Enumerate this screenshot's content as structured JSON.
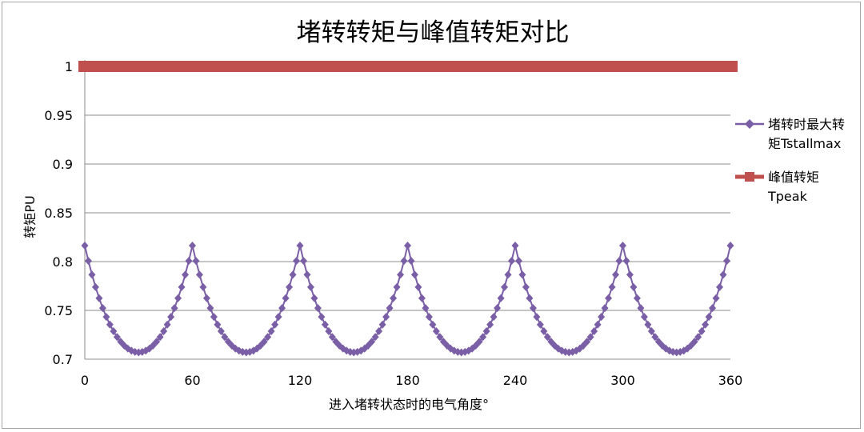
{
  "chart_data": {
    "type": "line",
    "title": "堵转转矩与峰值转矩对比",
    "xlabel": "进入堵转状态时的电气角度°",
    "ylabel": "转矩PU",
    "xlim": [
      0,
      360
    ],
    "ylim": [
      0.7,
      1.0
    ],
    "x_ticks": [
      "0",
      "60",
      "120",
      "180",
      "240",
      "300",
      "360"
    ],
    "y_ticks": [
      "0.7",
      "0.75",
      "0.8",
      "0.85",
      "0.9",
      "0.95",
      "1"
    ],
    "grid": "horizontal",
    "legend_position": "right",
    "legend": [
      "堵转时最大转矩Tstallmax",
      "峰值转矩Tpeak"
    ],
    "series": [
      {
        "name": "堵转时最大转矩Tstallmax",
        "color": "#7b5fa6",
        "marker": "diamond",
        "x_start": 0,
        "x_end": 360,
        "x_step": 2,
        "period": 60,
        "peak": 0.816,
        "trough": 0.707,
        "shape": "0.707 / cos(angle within each 60° period, measured from its midpoint)"
      },
      {
        "name": "峰值转矩Tpeak",
        "color": "#c0504d",
        "marker": "square",
        "x": [
          0,
          360
        ],
        "values": [
          1.0,
          1.0
        ]
      }
    ]
  }
}
